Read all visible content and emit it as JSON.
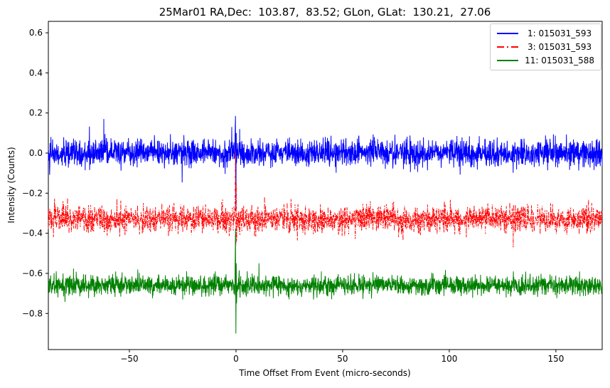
{
  "chart_data": {
    "type": "line",
    "title": "25Mar01 RA,Dec:  103.87,  83.52; GLon, GLat:  130.21,  27.06",
    "xlabel": "Time Offset From Event (micro-seconds)",
    "ylabel": "Intensity (Counts)",
    "xlim": [
      -88,
      171.7
    ],
    "ylim": [
      -0.98,
      0.657
    ],
    "xticks": [
      {
        "v": -50,
        "label": "−50"
      },
      {
        "v": 0,
        "label": "0"
      },
      {
        "v": 50,
        "label": "50"
      },
      {
        "v": 100,
        "label": "100"
      },
      {
        "v": 150,
        "label": "150"
      }
    ],
    "yticks": [
      {
        "v": 0.6,
        "label": "0.6"
      },
      {
        "v": 0.4,
        "label": "0.4"
      },
      {
        "v": 0.2,
        "label": "0.2"
      },
      {
        "v": 0.0,
        "label": "0.0"
      },
      {
        "v": -0.2,
        "label": "−0.2"
      },
      {
        "v": -0.4,
        "label": "−0.4"
      },
      {
        "v": -0.6,
        "label": "−0.6"
      },
      {
        "v": -0.8,
        "label": "−0.8"
      }
    ],
    "grid": false,
    "legend_position": "upper right",
    "n_points": 2600,
    "seed": 42,
    "spike_exclusion_halfwidth": 0.55,
    "series": [
      {
        "name": " 1: 015031_593",
        "color": "#0000ff",
        "linestyle": "solid",
        "baseline": 0.0,
        "noise_sigma": 0.033,
        "spike_points": [
          [
            -0.5,
            0.06
          ],
          [
            -0.25,
            0.185
          ],
          [
            -0.05,
            -0.29
          ],
          [
            0.1,
            0.1
          ],
          [
            0.25,
            -0.05
          ],
          [
            0.5,
            0.02
          ]
        ],
        "outliers": [
          [
            -62,
            0.17
          ],
          [
            -2,
            0.13
          ],
          [
            1.7,
            0.12
          ]
        ]
      },
      {
        "name": " 3: 015031_593",
        "color": "#ff0000",
        "linestyle": "dash-dot",
        "baseline": -0.33,
        "noise_sigma": 0.033,
        "spike_points": [
          [
            -0.5,
            -0.3
          ],
          [
            -0.25,
            0.005
          ],
          [
            -0.05,
            -0.46
          ],
          [
            0.1,
            -0.15
          ],
          [
            0.25,
            -0.44
          ],
          [
            0.5,
            -0.32
          ]
        ],
        "outliers": [
          [
            130,
            -0.47
          ],
          [
            108,
            -0.42
          ],
          [
            63,
            -0.24
          ]
        ]
      },
      {
        "name": "11: 015031_588",
        "color": "#008000",
        "linestyle": "solid",
        "baseline": -0.66,
        "noise_sigma": 0.024,
        "spike_points": [
          [
            -0.5,
            -0.64
          ],
          [
            -0.25,
            -0.38
          ],
          [
            -0.05,
            -0.9
          ],
          [
            0.1,
            -0.55
          ],
          [
            0.25,
            -0.75
          ],
          [
            0.5,
            -0.66
          ]
        ],
        "outliers": [
          [
            -25,
            -0.73
          ],
          [
            40,
            -0.59
          ]
        ]
      }
    ]
  }
}
